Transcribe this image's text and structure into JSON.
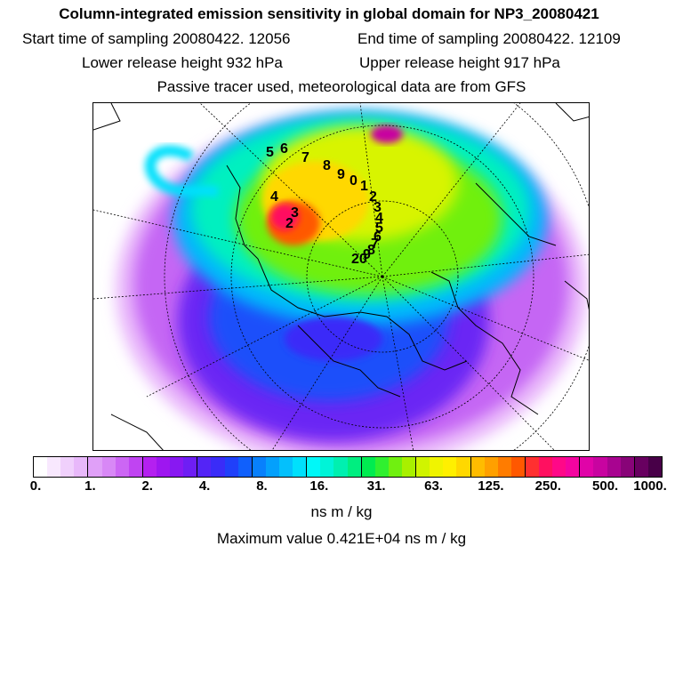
{
  "header": {
    "title": "Column-integrated emission sensitivity in global domain for NP3_20080421",
    "start_label": "Start time of sampling 20080422. 12056",
    "end_label": "End time of sampling 20080422. 12109",
    "lower_label": "Lower release height  932 hPa",
    "upper_label": "Upper release height  917 hPa",
    "note": "Passive tracer used, meteorological data are from GFS"
  },
  "map": {
    "projection": "north-polar-stereographic",
    "point_labels": [
      "2",
      "3",
      "4",
      "5",
      "6",
      "7",
      "8",
      "9",
      "0",
      "1",
      "2",
      "3",
      "4",
      "5",
      "6",
      "7",
      "8",
      "9",
      "20"
    ]
  },
  "colorbar": {
    "ticks": [
      "0.",
      "1.",
      "2.",
      "4.",
      "8.",
      "16.",
      "31.",
      "63.",
      "125.",
      "250.",
      "500.",
      "1000."
    ],
    "colors": [
      "#ffffff",
      "#f8e8fe",
      "#f0d0fc",
      "#e8b8fa",
      "#e0a0f8",
      "#d888f6",
      "#cc66f4",
      "#c044f2",
      "#b420f0",
      "#9e16f0",
      "#8818f2",
      "#6e1ef4",
      "#5424f6",
      "#3a2cf8",
      "#2040fa",
      "#1060fc",
      "#0880fc",
      "#04a0fc",
      "#04c0fc",
      "#00e0fc",
      "#00f8f8",
      "#00f4d8",
      "#00f0b0",
      "#00ee80",
      "#00ec50",
      "#30f030",
      "#70f010",
      "#a8f000",
      "#d0f400",
      "#f0f400",
      "#fff000",
      "#ffd800",
      "#ffbc00",
      "#ffa000",
      "#ff7c00",
      "#ff5800",
      "#ff3030",
      "#ff1060",
      "#ff0888",
      "#f404a0",
      "#e004a8",
      "#c804a0",
      "#a80490",
      "#880478",
      "#680060",
      "#480048"
    ],
    "units": "ns m / kg"
  },
  "max_value_text": "Maximum value  0.421E+04 ns m / kg"
}
